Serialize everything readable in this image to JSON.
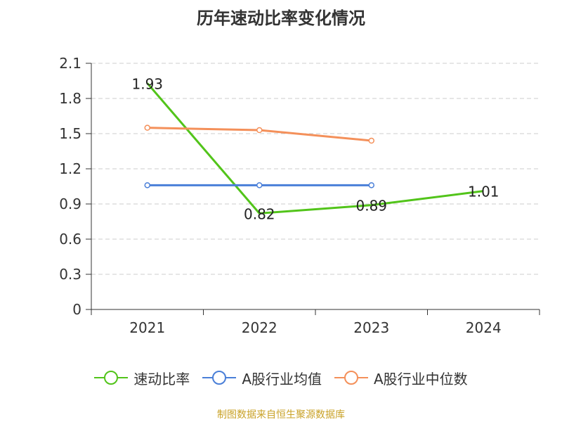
{
  "chart_data": {
    "type": "line",
    "title": "历年速动比率变化情况",
    "categories": [
      "2021",
      "2022",
      "2023",
      "2024"
    ],
    "ylim": [
      0,
      2.1
    ],
    "yticks": [
      0,
      0.3,
      0.6,
      0.9,
      1.2,
      1.5,
      1.8,
      2.1
    ],
    "ytick_labels": [
      "0",
      "0.3",
      "0.6",
      "0.9",
      "1.2",
      "1.5",
      "1.8",
      "2.1"
    ],
    "grid": "horizontal dashed",
    "legend": "bottom",
    "series": [
      {
        "name": "速动比率",
        "color": "#52c41a",
        "marker": "none",
        "show_labels": true,
        "values": [
          1.93,
          0.82,
          0.89,
          1.01
        ],
        "labels": [
          "1.93",
          "0.82",
          "0.89",
          "1.01"
        ]
      },
      {
        "name": "A股行业均值",
        "color": "#4a7fd8",
        "marker": "circle",
        "show_labels": false,
        "values": [
          1.06,
          1.06,
          1.06,
          null
        ]
      },
      {
        "name": "A股行业中位数",
        "color": "#f4905a",
        "marker": "circle",
        "show_labels": false,
        "values": [
          1.55,
          1.53,
          1.44,
          null
        ]
      }
    ]
  },
  "source": "制图数据来自恒生聚源数据库"
}
